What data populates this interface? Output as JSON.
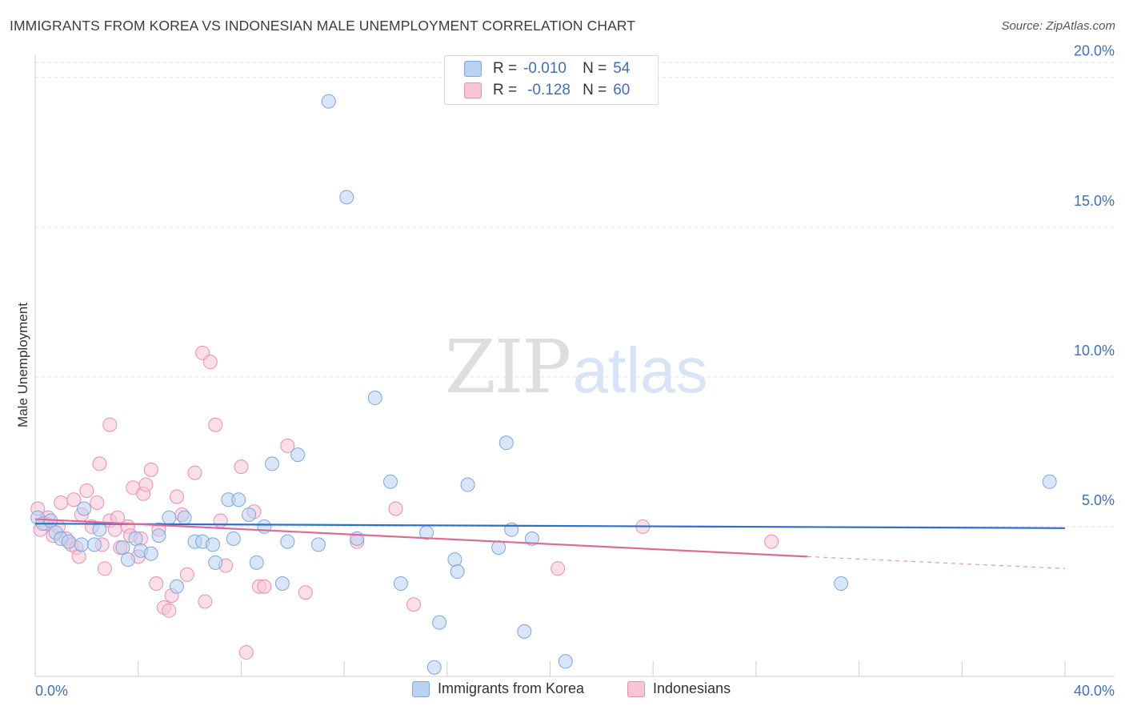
{
  "header": {
    "title": "IMMIGRANTS FROM KOREA VS INDONESIAN MALE UNEMPLOYMENT CORRELATION CHART",
    "source": "Source: ZipAtlas.com"
  },
  "watermark": {
    "zip": "ZIP",
    "atlas": "atlas"
  },
  "colors": {
    "korea_fill": "#b9d2f2",
    "korea_stroke": "#7ea6e0",
    "korea_line": "#2f6fcc",
    "indonesian_fill": "#f7c5d6",
    "indonesian_stroke": "#e98fb0",
    "indonesian_line": "#e0689a",
    "axis_label": "#3f6fc4",
    "grid": "#e3e3e3"
  },
  "legend_top": {
    "korea": {
      "r_label": "R =",
      "r_value": "-0.010",
      "n_label": "N =",
      "n_value": "54"
    },
    "indonesian": {
      "r_label": "R =",
      "r_value": "-0.128",
      "n_label": "N =",
      "n_value": "60"
    }
  },
  "chart_data": {
    "type": "scatter",
    "title": "IMMIGRANTS FROM KOREA VS INDONESIAN MALE UNEMPLOYMENT CORRELATION CHART",
    "xlabel": "",
    "ylabel": "Male Unemployment",
    "xlim": [
      0,
      40
    ],
    "ylim": [
      0,
      20.5
    ],
    "x_tick_labels": [
      "0.0%",
      "40.0%"
    ],
    "y_ticks": [
      5,
      10,
      15,
      20
    ],
    "y_tick_labels": [
      "5.0%",
      "10.0%",
      "15.0%",
      "20.0%"
    ],
    "grid": "horizontal dashed",
    "legend_placement": "bottom",
    "series": [
      {
        "name": "Immigrants from Korea",
        "trend": {
          "x": [
            0,
            40
          ],
          "y": [
            5.1,
            4.95
          ]
        },
        "points": [
          [
            0.1,
            5.3
          ],
          [
            0.3,
            5.1
          ],
          [
            0.6,
            5.2
          ],
          [
            0.8,
            4.8
          ],
          [
            1.0,
            4.6
          ],
          [
            1.3,
            4.5
          ],
          [
            1.8,
            4.4
          ],
          [
            1.9,
            5.6
          ],
          [
            2.3,
            4.4
          ],
          [
            2.5,
            4.9
          ],
          [
            3.4,
            4.3
          ],
          [
            3.6,
            3.9
          ],
          [
            3.9,
            4.6
          ],
          [
            4.1,
            4.2
          ],
          [
            4.5,
            4.1
          ],
          [
            4.8,
            4.7
          ],
          [
            5.2,
            5.3
          ],
          [
            5.5,
            3.0
          ],
          [
            5.8,
            5.3
          ],
          [
            6.2,
            4.5
          ],
          [
            6.5,
            4.5
          ],
          [
            6.9,
            4.4
          ],
          [
            7.0,
            3.8
          ],
          [
            7.5,
            5.9
          ],
          [
            7.7,
            4.6
          ],
          [
            7.9,
            5.9
          ],
          [
            8.3,
            5.4
          ],
          [
            8.6,
            3.8
          ],
          [
            8.9,
            5.0
          ],
          [
            9.2,
            7.1
          ],
          [
            9.6,
            3.1
          ],
          [
            9.8,
            4.5
          ],
          [
            10.2,
            7.4
          ],
          [
            11.0,
            4.4
          ],
          [
            11.4,
            19.2
          ],
          [
            12.1,
            16.0
          ],
          [
            12.5,
            4.6
          ],
          [
            13.2,
            9.3
          ],
          [
            13.8,
            6.5
          ],
          [
            14.2,
            3.1
          ],
          [
            15.2,
            4.8
          ],
          [
            15.5,
            0.3
          ],
          [
            15.7,
            1.8
          ],
          [
            16.3,
            3.9
          ],
          [
            16.4,
            3.5
          ],
          [
            16.8,
            6.4
          ],
          [
            18.0,
            4.3
          ],
          [
            18.3,
            7.8
          ],
          [
            18.5,
            4.9
          ],
          [
            19.0,
            1.5
          ],
          [
            19.3,
            4.6
          ],
          [
            20.6,
            0.5
          ],
          [
            31.3,
            3.1
          ],
          [
            39.4,
            6.5
          ]
        ]
      },
      {
        "name": "Indonesians",
        "trend": {
          "x": [
            0,
            30
          ],
          "y": [
            5.25,
            4.0
          ]
        },
        "trend_dashed": {
          "x": [
            30,
            40
          ],
          "y": [
            4.0,
            3.6
          ]
        },
        "points": [
          [
            0.1,
            5.6
          ],
          [
            0.2,
            4.9
          ],
          [
            0.4,
            5.1
          ],
          [
            0.5,
            5.3
          ],
          [
            0.7,
            4.7
          ],
          [
            0.9,
            5.0
          ],
          [
            1.0,
            5.8
          ],
          [
            1.2,
            4.6
          ],
          [
            1.4,
            4.4
          ],
          [
            1.5,
            5.9
          ],
          [
            1.6,
            4.3
          ],
          [
            1.7,
            4.0
          ],
          [
            1.8,
            5.4
          ],
          [
            2.0,
            6.2
          ],
          [
            2.2,
            5.0
          ],
          [
            2.4,
            5.8
          ],
          [
            2.5,
            7.1
          ],
          [
            2.6,
            4.4
          ],
          [
            2.7,
            3.6
          ],
          [
            2.9,
            5.2
          ],
          [
            2.9,
            8.4
          ],
          [
            3.1,
            4.9
          ],
          [
            3.2,
            5.3
          ],
          [
            3.3,
            4.3
          ],
          [
            3.6,
            5.0
          ],
          [
            3.7,
            4.7
          ],
          [
            3.8,
            6.3
          ],
          [
            4.0,
            4.0
          ],
          [
            4.1,
            4.6
          ],
          [
            4.2,
            6.1
          ],
          [
            4.3,
            6.4
          ],
          [
            4.5,
            6.9
          ],
          [
            4.7,
            3.1
          ],
          [
            4.8,
            4.9
          ],
          [
            5.0,
            2.3
          ],
          [
            5.2,
            2.2
          ],
          [
            5.3,
            2.7
          ],
          [
            5.5,
            6.0
          ],
          [
            5.7,
            5.4
          ],
          [
            5.9,
            3.4
          ],
          [
            6.2,
            6.8
          ],
          [
            6.5,
            10.8
          ],
          [
            6.6,
            2.5
          ],
          [
            6.8,
            10.5
          ],
          [
            7.0,
            8.4
          ],
          [
            7.2,
            5.2
          ],
          [
            7.4,
            3.7
          ],
          [
            8.0,
            7.0
          ],
          [
            8.2,
            0.8
          ],
          [
            8.5,
            5.5
          ],
          [
            8.7,
            3.0
          ],
          [
            8.9,
            3.0
          ],
          [
            9.8,
            7.7
          ],
          [
            10.5,
            2.8
          ],
          [
            12.5,
            4.5
          ],
          [
            14.0,
            5.6
          ],
          [
            14.7,
            2.4
          ],
          [
            20.3,
            3.6
          ],
          [
            23.6,
            5.0
          ],
          [
            28.6,
            4.5
          ]
        ]
      }
    ]
  },
  "legend_bottom": {
    "korea_label": "Immigrants from Korea",
    "indonesian_label": "Indonesians"
  }
}
